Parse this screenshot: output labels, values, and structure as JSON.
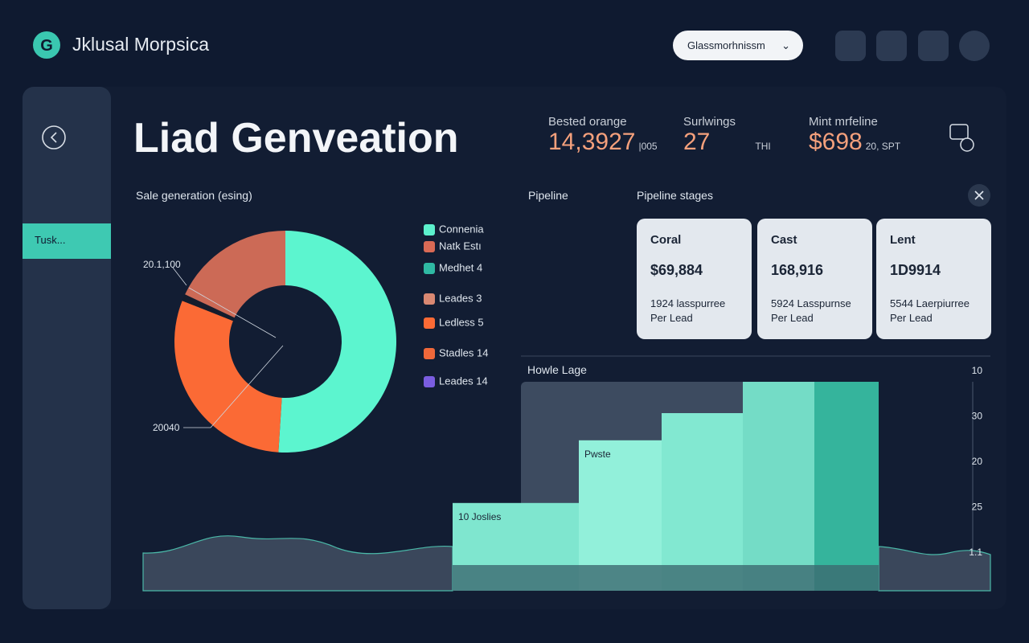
{
  "header": {
    "brand": "Jklusal Morpsica",
    "dropdown": "Glassmorhnissm"
  },
  "sidebar": {
    "item": "Tusk..."
  },
  "page": {
    "title": "Liad Genveation"
  },
  "kpis": [
    {
      "label": "Bested orange",
      "value": "14,3927",
      "suffix": "|005"
    },
    {
      "label": "Surlwings",
      "value": "27",
      "suffix": "THI"
    },
    {
      "label": "Mint mrfeline",
      "value": "$698",
      "suffix": "20, SPT"
    }
  ],
  "sections": {
    "sales": "Sale generation (esing)",
    "pipeline": "Pipeline",
    "stages": "Pipeline stages"
  },
  "cards": [
    {
      "title": "Coral",
      "value": "$69,884",
      "detail": "1924 lasspurree",
      "unit": "Per Lead"
    },
    {
      "title": "Cast",
      "value": "168,916",
      "detail": "5924 Lasspurnse",
      "unit": "Per Lead"
    },
    {
      "title": "Lent",
      "value": "1D9914",
      "detail": "5544 Laerpiurree",
      "unit": "Per Lead"
    }
  ],
  "chart_data": [
    {
      "type": "pie",
      "donut": true,
      "values": [
        51,
        30,
        1,
        18
      ],
      "colors": [
        "#5cf5cf",
        "#fb6a35",
        "#141c2c",
        "#cc6a56"
      ],
      "annotations": [
        "20.1,100",
        "20040"
      ],
      "legend": [
        {
          "name": "Connenia",
          "color": "#5cf0cc"
        },
        {
          "name": "Natk Estı",
          "color": "#d96a55"
        },
        {
          "name": "Medhet 4",
          "color": "#2fb9a3"
        },
        {
          "name": "Leades 3",
          "color": "#d98872"
        },
        {
          "name": "Ledless 5",
          "color": "#fb6a35"
        },
        {
          "name": "Stadles 14",
          "color": "#f0683a"
        },
        {
          "name": "Leades 14",
          "color": "#7a5de0"
        }
      ]
    },
    {
      "type": "bar",
      "title": "Howle Lage",
      "values": [
        42,
        72,
        85,
        100,
        100
      ],
      "colors": [
        "#7fe6cf",
        "#92f0da",
        "#82e8d1",
        "#74dcc6",
        "#35b49c"
      ],
      "ylim": [
        0,
        100
      ],
      "annotations": [
        "10 Joslies",
        "Pwste"
      ],
      "axis_labels": [
        "10",
        "30",
        "20",
        "25",
        "1.1"
      ]
    }
  ]
}
